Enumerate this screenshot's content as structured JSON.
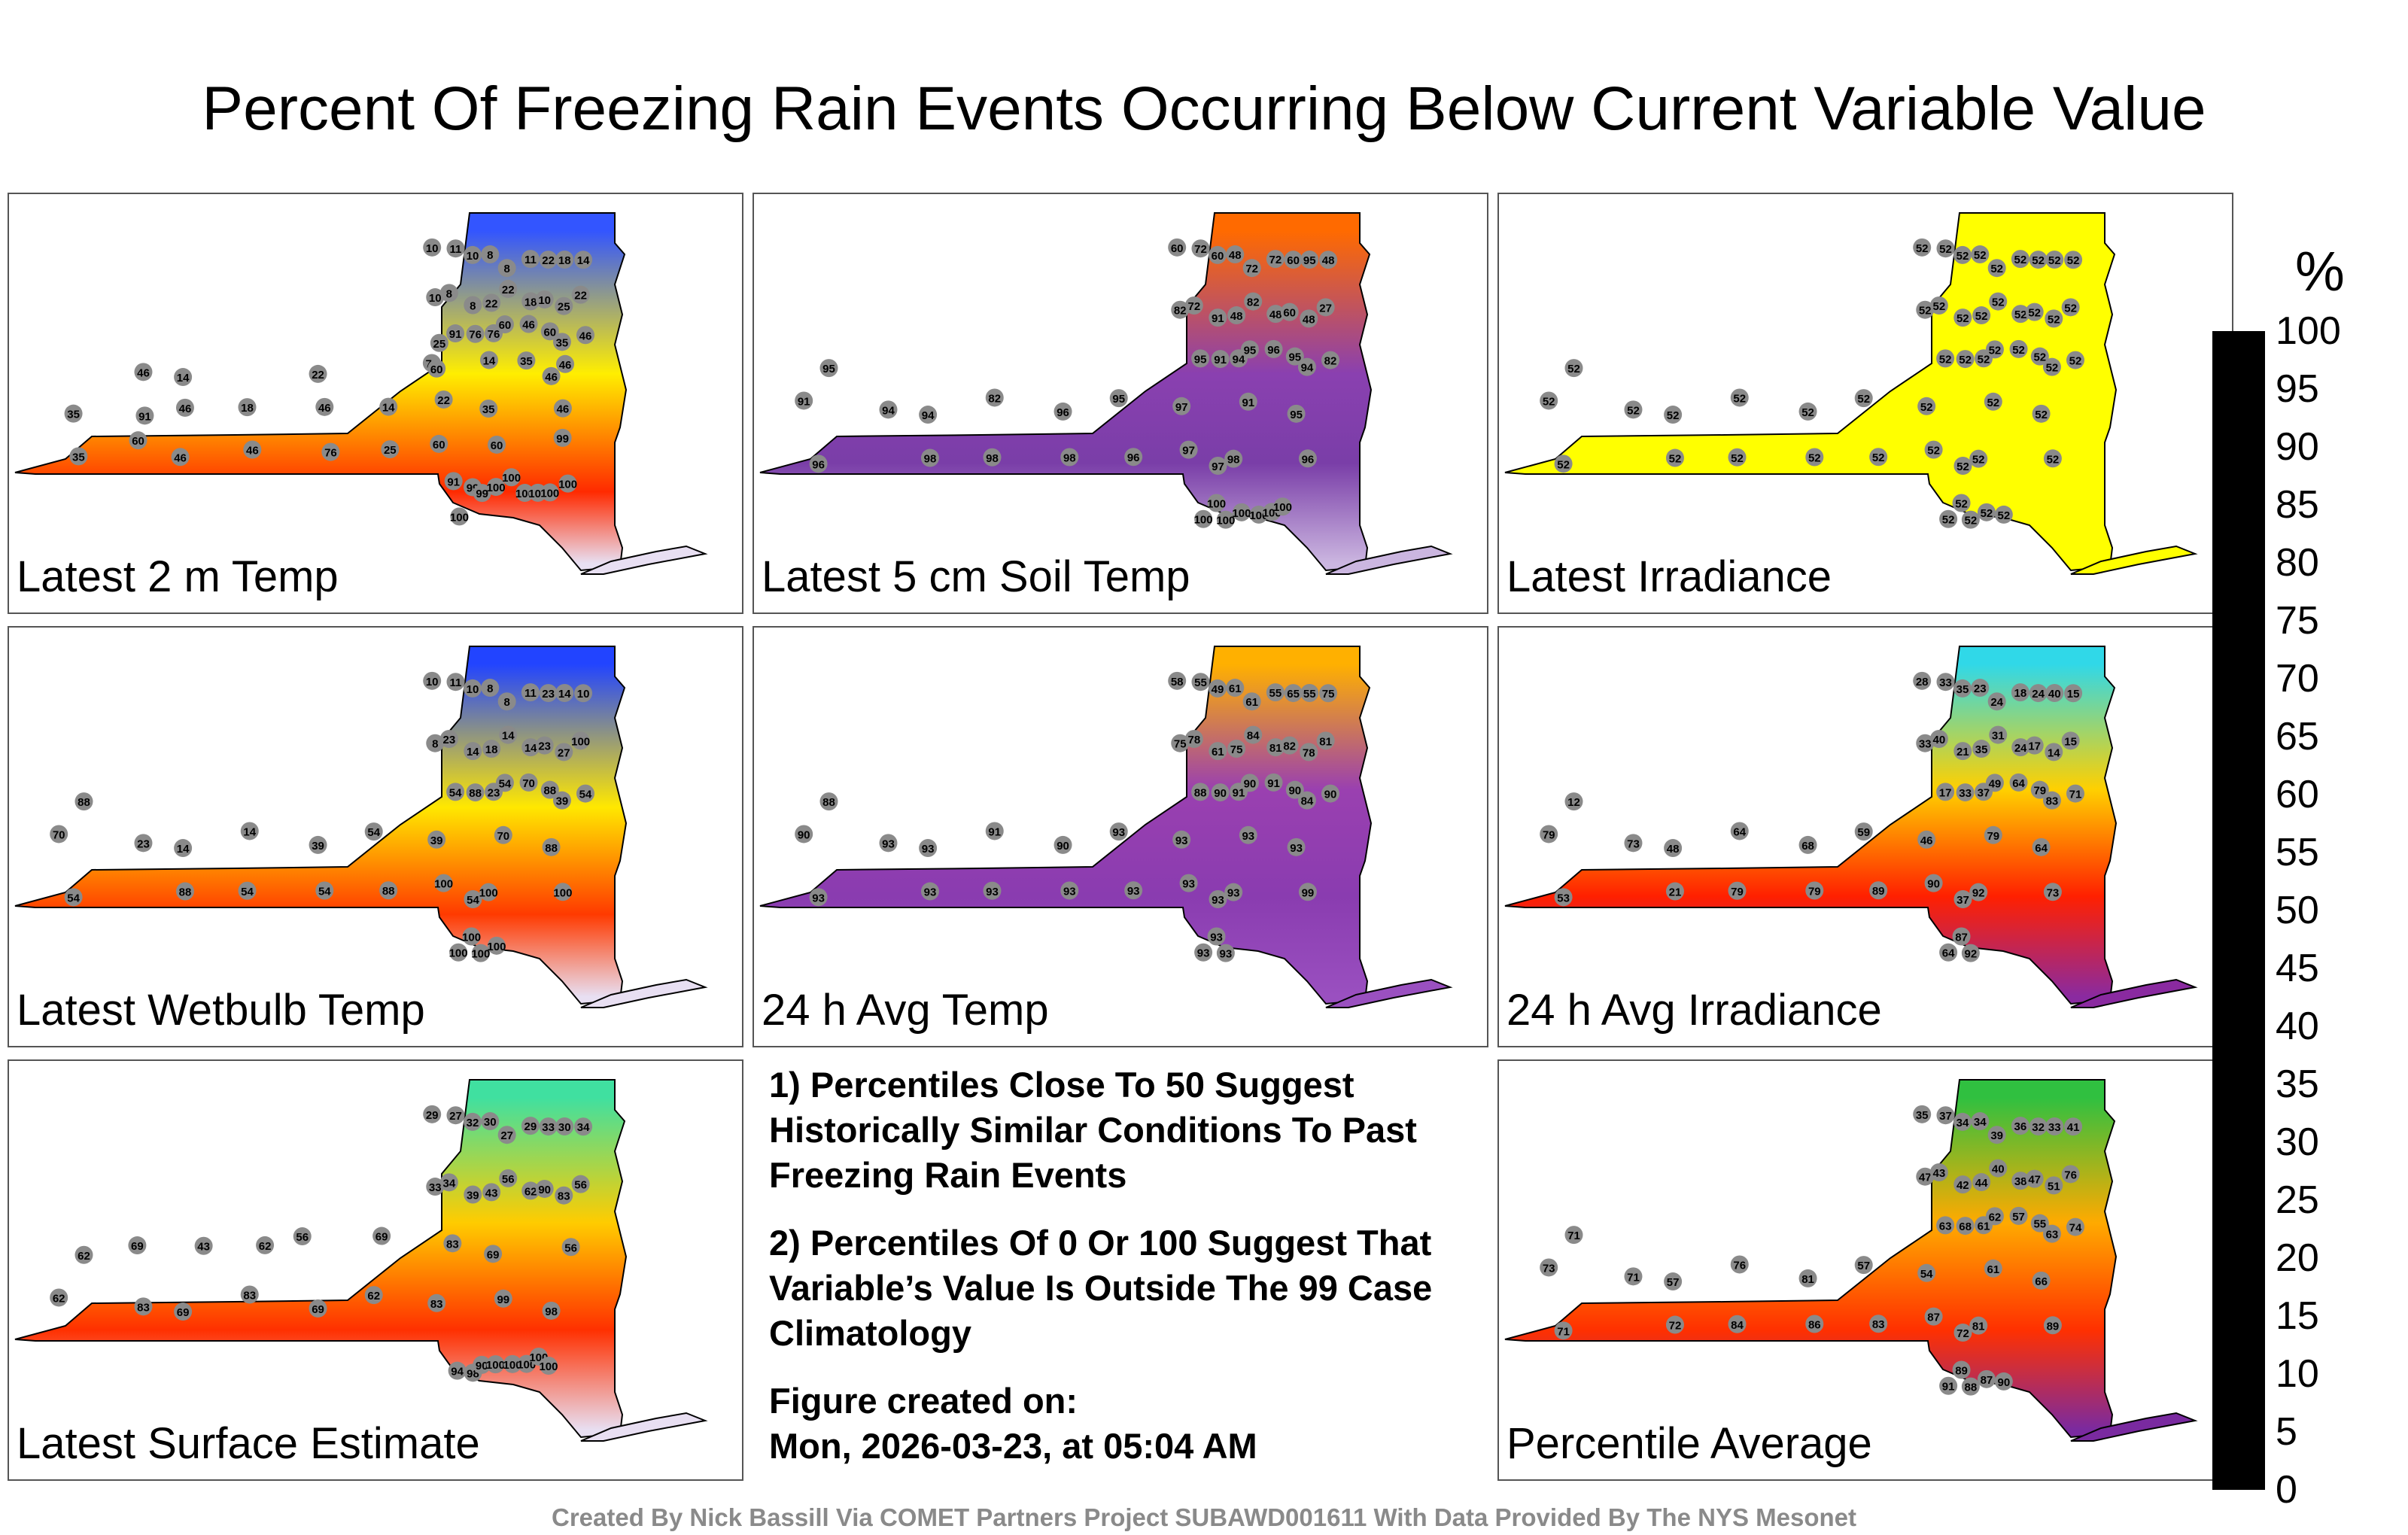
{
  "title": "Percent Of Freezing Rain Events Occurring Below Current Variable Value",
  "colorbar": {
    "unit": "%",
    "ticks": [
      "100",
      "95",
      "90",
      "85",
      "80",
      "75",
      "70",
      "65",
      "60",
      "55",
      "50",
      "45",
      "40",
      "35",
      "30",
      "25",
      "20",
      "15",
      "10",
      "5",
      "0"
    ],
    "colors": [
      "#000000",
      "#0d0d5a",
      "#0a0aa0",
      "#1a3cff",
      "#1a8cff",
      "#00c8ff",
      "#00e0b0",
      "#00c040",
      "#50d020",
      "#b0e000",
      "#ffff00",
      "#ffd000",
      "#ffa000",
      "#ff6000",
      "#ff1000",
      "#d00010",
      "#a00040",
      "#7a1a9a",
      "#8a50c0",
      "#b090d8",
      "#f4eef8"
    ]
  },
  "panels": [
    {
      "label": "Latest 2 m Temp",
      "stations": [
        "10",
        "11",
        "10",
        "8",
        "8",
        "11",
        "22",
        "18",
        "14",
        "10",
        "8",
        "8",
        "22",
        "22",
        "18",
        "10",
        "25",
        "22",
        "25",
        "91",
        "76",
        "76",
        "60",
        "46",
        "60",
        "35",
        "46",
        "76",
        "46",
        "14",
        "14",
        "22",
        "35",
        "60",
        "46",
        "46",
        "35",
        "91",
        "46",
        "18",
        "46",
        "14",
        "22",
        "35",
        "46",
        "35",
        "60",
        "46",
        "46",
        "76",
        "25",
        "60",
        "60",
        "99",
        "91",
        "99",
        "99",
        "100",
        "100",
        "100",
        "100",
        "100",
        "100",
        "100"
      ]
    },
    {
      "label": "Latest 5 cm Soil Temp",
      "stations": [
        "60",
        "72",
        "60",
        "48",
        "72",
        "72",
        "60",
        "95",
        "48",
        "82",
        "72",
        "91",
        "48",
        "82",
        "48",
        "60",
        "48",
        "27",
        "95",
        "95",
        "91",
        "94",
        "95",
        "96",
        "95",
        "94",
        "82",
        "91",
        "94",
        "94",
        "82",
        "96",
        "95",
        "97",
        "91",
        "95",
        "96",
        "97",
        "98",
        "98",
        "98",
        "96",
        "97",
        "98",
        "96",
        "100",
        "100",
        "100",
        "100",
        "100",
        "100",
        "100"
      ]
    },
    {
      "label": "Latest Irradiance",
      "stations": [
        "52",
        "52",
        "52",
        "52",
        "52",
        "52",
        "52",
        "52",
        "52",
        "52",
        "52",
        "52",
        "52",
        "52",
        "52",
        "52",
        "52",
        "52",
        "52",
        "52",
        "52",
        "52",
        "52",
        "52",
        "52",
        "52",
        "52",
        "52",
        "52",
        "52",
        "52",
        "52",
        "52",
        "52",
        "52",
        "52",
        "52",
        "52",
        "52",
        "52",
        "52",
        "52",
        "52",
        "52",
        "52",
        "52",
        "52",
        "52",
        "52",
        "52"
      ]
    },
    {
      "label": "Latest Wetbulb Temp",
      "stations": [
        "10",
        "11",
        "10",
        "8",
        "8",
        "11",
        "23",
        "14",
        "10",
        "8",
        "23",
        "14",
        "18",
        "14",
        "14",
        "23",
        "27",
        "100",
        "88",
        "54",
        "88",
        "23",
        "54",
        "70",
        "88",
        "39",
        "54",
        "70",
        "23",
        "14",
        "14",
        "39",
        "54",
        "39",
        "70",
        "88",
        "54",
        "54",
        "88",
        "54",
        "54",
        "88",
        "100",
        "100",
        "100",
        "100",
        "100",
        "100",
        "100"
      ]
    },
    {
      "label": "24 h Avg Temp",
      "stations": [
        "58",
        "55",
        "49",
        "61",
        "61",
        "55",
        "65",
        "55",
        "75",
        "75",
        "78",
        "61",
        "75",
        "84",
        "81",
        "82",
        "78",
        "81",
        "88",
        "88",
        "90",
        "91",
        "90",
        "91",
        "90",
        "84",
        "90",
        "90",
        "93",
        "93",
        "91",
        "90",
        "93",
        "93",
        "93",
        "93",
        "93",
        "93",
        "93",
        "93",
        "93",
        "93",
        "93",
        "93",
        "99",
        "93",
        "93",
        "93"
      ]
    },
    {
      "label": "24 h Avg Irradiance",
      "stations": [
        "28",
        "33",
        "35",
        "23",
        "24",
        "18",
        "24",
        "40",
        "15",
        "33",
        "40",
        "21",
        "35",
        "31",
        "24",
        "17",
        "14",
        "15",
        "12",
        "17",
        "33",
        "37",
        "49",
        "64",
        "79",
        "83",
        "71",
        "79",
        "73",
        "48",
        "64",
        "68",
        "59",
        "46",
        "79",
        "64",
        "53",
        "37",
        "21",
        "79",
        "79",
        "89",
        "90",
        "92",
        "73",
        "64",
        "87",
        "92"
      ]
    },
    {
      "label": "Latest Surface Estimate",
      "stations": [
        "29",
        "27",
        "32",
        "30",
        "27",
        "29",
        "33",
        "30",
        "34",
        "33",
        "34",
        "39",
        "43",
        "56",
        "62",
        "90",
        "83",
        "56",
        "62",
        "69",
        "43",
        "62",
        "56",
        "69",
        "83",
        "69",
        "56",
        "62",
        "83",
        "69",
        "83",
        "69",
        "62",
        "83",
        "99",
        "98",
        "94",
        "98",
        "90",
        "100",
        "100",
        "100",
        "100",
        "100"
      ]
    },
    {
      "label": "Percentile Average",
      "stations": [
        "35",
        "37",
        "34",
        "34",
        "39",
        "36",
        "32",
        "33",
        "41",
        "47",
        "43",
        "42",
        "44",
        "40",
        "38",
        "47",
        "51",
        "76",
        "71",
        "63",
        "68",
        "61",
        "62",
        "57",
        "55",
        "63",
        "74",
        "73",
        "71",
        "57",
        "76",
        "81",
        "57",
        "54",
        "61",
        "66",
        "71",
        "72",
        "72",
        "84",
        "86",
        "83",
        "87",
        "81",
        "89",
        "91",
        "89",
        "88",
        "87",
        "90"
      ]
    }
  ],
  "notes": [
    "1) Percentiles Close To 50 Suggest Historically Similar Conditions To Past Freezing Rain Events",
    "2) Percentiles Of 0 Or 100 Suggest That Variable’s Value Is Outside The 99 Case Climatology"
  ],
  "created_label": "Figure created on:",
  "created_value": "Mon, 2026-03-23, at 05:04 AM",
  "credit": "Created By Nick Bassill Via COMET Partners Project SUBAWD001611 With Data Provided By The NYS Mesonet"
}
